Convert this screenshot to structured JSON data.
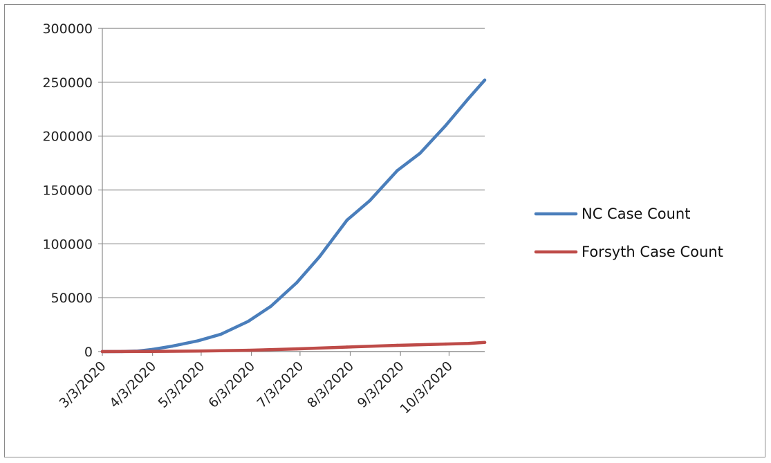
{
  "chart_data": {
    "type": "line",
    "title": "",
    "xlabel": "",
    "ylabel": "",
    "ylim": [
      0,
      300000
    ],
    "yticks": [
      "0",
      "50000",
      "100000",
      "150000",
      "200000",
      "250000",
      "300000"
    ],
    "xlim": [
      "2020-03-03",
      "2020-10-25"
    ],
    "xticks": [
      {
        "date": "2020-03-03",
        "label": "3/3/2020"
      },
      {
        "date": "2020-04-03",
        "label": "4/3/2020"
      },
      {
        "date": "2020-05-03",
        "label": "5/3/2020"
      },
      {
        "date": "2020-06-03",
        "label": "6/3/2020"
      },
      {
        "date": "2020-07-03",
        "label": "7/3/2020"
      },
      {
        "date": "2020-08-03",
        "label": "8/3/2020"
      },
      {
        "date": "2020-09-03",
        "label": "9/3/2020"
      },
      {
        "date": "2020-10-03",
        "label": "10/3/2020"
      }
    ],
    "grid": true,
    "legend": "right",
    "series": [
      {
        "name": "NC Case Count",
        "color": "#4a7ebb",
        "points": [
          [
            "2020-03-03",
            0
          ],
          [
            "2020-03-15",
            50
          ],
          [
            "2020-03-25",
            500
          ],
          [
            "2020-04-03",
            2000
          ],
          [
            "2020-04-15",
            5000
          ],
          [
            "2020-05-01",
            10000
          ],
          [
            "2020-05-15",
            16000
          ],
          [
            "2020-06-01",
            28000
          ],
          [
            "2020-06-15",
            42000
          ],
          [
            "2020-07-01",
            64000
          ],
          [
            "2020-07-15",
            88000
          ],
          [
            "2020-08-01",
            122000
          ],
          [
            "2020-08-15",
            140000
          ],
          [
            "2020-09-01",
            168000
          ],
          [
            "2020-09-15",
            184000
          ],
          [
            "2020-10-01",
            210000
          ],
          [
            "2020-10-15",
            235000
          ],
          [
            "2020-10-25",
            252000
          ]
        ]
      },
      {
        "name": "Forsyth Case Count",
        "color": "#be4b48",
        "points": [
          [
            "2020-03-03",
            0
          ],
          [
            "2020-04-03",
            100
          ],
          [
            "2020-05-01",
            500
          ],
          [
            "2020-06-01",
            1200
          ],
          [
            "2020-07-01",
            2500
          ],
          [
            "2020-08-01",
            4200
          ],
          [
            "2020-09-01",
            5800
          ],
          [
            "2020-10-01",
            7000
          ],
          [
            "2020-10-15",
            7500
          ],
          [
            "2020-10-25",
            8500
          ]
        ]
      }
    ]
  }
}
